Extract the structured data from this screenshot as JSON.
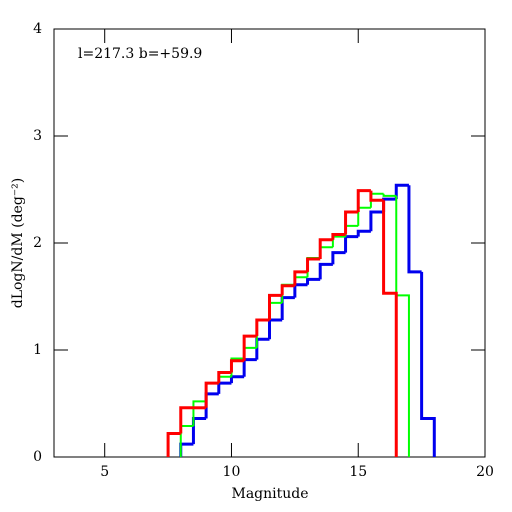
{
  "chart_data": {
    "type": "histogram",
    "annotation": "l=217.3 b=+59.9",
    "xlabel": "Magnitude",
    "ylabel": "dLogN/dM (deg⁻²)",
    "bins": [
      7.5,
      8,
      8.5,
      9,
      9.5,
      10,
      10.5,
      11,
      11.5,
      12,
      12.5,
      13,
      13.5,
      14,
      14.5,
      15,
      15.5,
      16,
      16.5,
      17,
      17.5,
      18
    ],
    "series": [
      {
        "color": "#0000ee",
        "width": 3,
        "values": [
          null,
          0.12,
          0.36,
          0.59,
          0.69,
          0.75,
          0.91,
          1.1,
          1.28,
          1.49,
          1.61,
          1.66,
          1.8,
          1.91,
          2.06,
          2.11,
          2.29,
          2.41,
          2.54,
          1.73,
          0.36
        ]
      },
      {
        "color": "#00ff00",
        "width": 2,
        "values": [
          null,
          0.29,
          0.52,
          0.69,
          0.75,
          0.92,
          1.02,
          1.28,
          1.44,
          1.61,
          1.68,
          1.86,
          1.96,
          2.06,
          2.16,
          2.33,
          2.46,
          2.44,
          1.51,
          null,
          null
        ]
      },
      {
        "color": "#ff0000",
        "width": 3,
        "values": [
          0.22,
          0.46,
          0.46,
          0.69,
          0.79,
          0.9,
          1.13,
          1.28,
          1.51,
          1.6,
          1.73,
          1.85,
          2.03,
          2.08,
          2.29,
          2.49,
          2.4,
          1.53,
          null,
          null,
          null
        ]
      }
    ],
    "xlim": [
      3,
      20
    ],
    "ylim": [
      0,
      4
    ],
    "xticks": [
      5,
      10,
      15,
      20
    ],
    "yticks": [
      0,
      1,
      2,
      3,
      4
    ]
  }
}
